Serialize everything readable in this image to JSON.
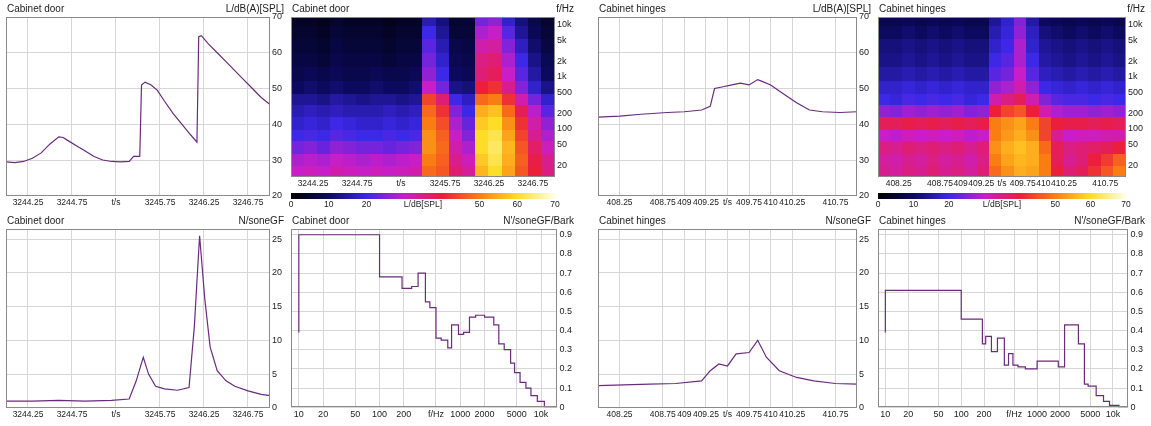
{
  "chart_data": [
    {
      "type": "line",
      "title": "Cabinet door",
      "y_label": "L/dB(A)[SPL]",
      "grid": true,
      "color": "#6a2b7d",
      "xlim": [
        3244.0,
        3247.0
      ],
      "xticks": [
        3244.25,
        3244.75,
        {
          "value": 3245.25,
          "label": "t/s"
        },
        3245.75,
        3246.25,
        3246.75
      ],
      "ylim": [
        20,
        70
      ],
      "yticks": [
        20,
        30,
        40,
        50,
        60,
        70
      ],
      "x": [
        3244.0,
        3244.1,
        3244.2,
        3244.3,
        3244.4,
        3244.5,
        3244.6,
        3244.65,
        3244.7,
        3244.8,
        3244.9,
        3245.0,
        3245.1,
        3245.2,
        3245.3,
        3245.4,
        3245.45,
        3245.52,
        3245.54,
        3245.58,
        3245.65,
        3245.72,
        3245.8,
        3245.9,
        3246.0,
        3246.1,
        3246.17,
        3246.19,
        3246.22,
        3246.3,
        3246.4,
        3246.5,
        3246.6,
        3246.7,
        3246.8,
        3246.9,
        3247.0
      ],
      "values": [
        29.5,
        29.3,
        29.6,
        30.5,
        32,
        34.5,
        36.5,
        36.3,
        35.5,
        34,
        32.5,
        31,
        30,
        29.6,
        29.5,
        29.6,
        31,
        31,
        51,
        51.8,
        51,
        49.5,
        46.5,
        43,
        40,
        37,
        35,
        64.5,
        64.8,
        62.5,
        60,
        57.5,
        55,
        52.5,
        50,
        47.5,
        45.5
      ]
    },
    {
      "type": "heatmap",
      "title": "Cabinet door",
      "y_label": "f/Hz",
      "log": "y",
      "xlim": [
        3244.0,
        3247.0
      ],
      "xticks": [
        3244.25,
        3244.75,
        {
          "value": 3245.25,
          "label": "t/s"
        },
        3245.75,
        3246.25,
        3246.75
      ],
      "ylim": [
        12,
        14000
      ],
      "yticks": [
        20,
        50,
        100,
        200,
        500,
        {
          "value": 1000,
          "label": "1k"
        },
        {
          "value": 2000,
          "label": "2k"
        },
        {
          "value": 5000,
          "label": "5k"
        },
        {
          "value": 10000,
          "label": "10k"
        }
      ],
      "x_edges": [
        3244.0,
        3244.15,
        3244.3,
        3244.45,
        3244.6,
        3244.75,
        3244.9,
        3245.05,
        3245.2,
        3245.35,
        3245.5,
        3245.65,
        3245.8,
        3245.95,
        3246.1,
        3246.25,
        3246.4,
        3246.55,
        3246.7,
        3246.85,
        3247.0
      ],
      "y_edges": [
        12,
        20,
        35,
        60,
        100,
        170,
        300,
        500,
        900,
        1600,
        3000,
        5500,
        10000,
        14000
      ],
      "cells": [
        [
          30,
          31,
          30,
          32,
          31,
          30,
          31,
          30,
          31,
          32,
          48,
          46,
          36,
          33,
          56,
          60,
          54,
          46,
          40,
          35
        ],
        [
          28,
          29,
          28,
          30,
          29,
          28,
          29,
          28,
          29,
          30,
          50,
          47,
          34,
          31,
          58,
          62,
          55,
          47,
          39,
          34
        ],
        [
          24,
          25,
          23,
          26,
          25,
          24,
          24,
          23,
          24,
          25,
          52,
          48,
          32,
          28,
          60,
          63,
          56,
          46,
          37,
          31
        ],
        [
          20,
          21,
          20,
          22,
          21,
          20,
          20,
          21,
          20,
          21,
          52,
          47,
          30,
          25,
          60,
          62,
          54,
          44,
          34,
          28
        ],
        [
          18,
          19,
          18,
          20,
          19,
          18,
          18,
          19,
          18,
          19,
          50,
          45,
          28,
          23,
          58,
          60,
          52,
          42,
          32,
          26
        ],
        [
          16,
          17,
          16,
          17,
          16,
          16,
          16,
          17,
          16,
          17,
          48,
          42,
          25,
          20,
          55,
          57,
          48,
          38,
          29,
          22
        ],
        [
          14,
          14,
          13,
          15,
          14,
          13,
          14,
          14,
          13,
          14,
          44,
          36,
          20,
          17,
          48,
          50,
          42,
          32,
          24,
          18
        ],
        [
          10,
          11,
          10,
          11,
          10,
          10,
          11,
          10,
          10,
          11,
          30,
          24,
          13,
          12,
          40,
          42,
          34,
          25,
          18,
          13
        ],
        [
          8,
          9,
          8,
          9,
          8,
          8,
          9,
          8,
          8,
          9,
          26,
          20,
          10,
          9,
          36,
          38,
          30,
          22,
          15,
          10
        ],
        [
          7,
          7,
          6,
          8,
          7,
          7,
          7,
          6,
          7,
          7,
          24,
          18,
          9,
          8,
          35,
          36,
          28,
          20,
          13,
          9
        ],
        [
          6,
          6,
          5,
          7,
          6,
          6,
          6,
          5,
          6,
          6,
          22,
          16,
          8,
          7,
          32,
          33,
          25,
          17,
          11,
          7
        ],
        [
          5,
          5,
          4,
          6,
          5,
          5,
          5,
          4,
          5,
          5,
          20,
          14,
          6,
          6,
          28,
          30,
          22,
          14,
          9,
          6
        ],
        [
          4,
          4,
          3,
          5,
          4,
          4,
          4,
          3,
          4,
          4,
          16,
          12,
          5,
          5,
          24,
          26,
          18,
          12,
          8,
          5
        ]
      ],
      "colorbar": {
        "range": [
          0,
          70
        ],
        "ticks": [
          0,
          10,
          20,
          {
            "value": 35,
            "label": "L/dB[SPL]"
          },
          50,
          60,
          70
        ]
      }
    },
    {
      "type": "line",
      "title": "Cabinet hinges",
      "y_label": "L/dB(A)[SPL]",
      "grid": true,
      "color": "#6a2b7d",
      "xlim": [
        408.0,
        411.0
      ],
      "xticks": [
        408.25,
        408.75,
        409,
        409.25,
        {
          "value": 409.5,
          "label": "t/s"
        },
        409.75,
        410,
        410.25,
        410.75
      ],
      "ylim": [
        20,
        70
      ],
      "yticks": [
        20,
        30,
        40,
        50,
        60,
        70
      ],
      "x": [
        408.0,
        408.25,
        408.5,
        408.8,
        409.0,
        409.2,
        409.3,
        409.35,
        409.45,
        409.55,
        409.65,
        409.75,
        409.85,
        409.9,
        410.0,
        410.15,
        410.3,
        410.45,
        410.6,
        410.8,
        411.0
      ],
      "values": [
        42,
        42.3,
        42.8,
        43.3,
        43.5,
        44,
        45,
        50,
        50.5,
        51,
        51.5,
        51,
        52.5,
        52,
        51,
        48.5,
        46,
        44,
        43.5,
        43.3,
        43.5
      ]
    },
    {
      "type": "heatmap",
      "title": "Cabinet hinges",
      "y_label": "f/Hz",
      "log": "y",
      "xlim": [
        408.0,
        411.0
      ],
      "xticks": [
        408.25,
        408.75,
        409,
        409.25,
        {
          "value": 409.5,
          "label": "t/s"
        },
        409.75,
        410,
        410.25,
        410.75
      ],
      "ylim": [
        12,
        14000
      ],
      "yticks": [
        20,
        50,
        100,
        200,
        500,
        {
          "value": 1000,
          "label": "1k"
        },
        {
          "value": 2000,
          "label": "2k"
        },
        {
          "value": 5000,
          "label": "5k"
        },
        {
          "value": 10000,
          "label": "10k"
        }
      ],
      "x_edges": [
        408.0,
        408.15,
        408.3,
        408.45,
        408.6,
        408.75,
        408.9,
        409.05,
        409.2,
        409.35,
        409.5,
        409.65,
        409.8,
        409.95,
        410.1,
        410.25,
        410.4,
        410.55,
        410.7,
        410.85,
        411.0
      ],
      "y_edges": [
        12,
        20,
        35,
        60,
        100,
        170,
        300,
        500,
        900,
        1600,
        3000,
        5500,
        10000,
        14000
      ],
      "cells": [
        [
          34,
          33,
          35,
          34,
          36,
          34,
          35,
          33,
          36,
          48,
          52,
          55,
          54,
          50,
          40,
          36,
          38,
          42,
          46,
          50
        ],
        [
          33,
          32,
          34,
          33,
          35,
          33,
          34,
          32,
          35,
          50,
          54,
          56,
          55,
          50,
          38,
          34,
          36,
          40,
          43,
          47
        ],
        [
          35,
          34,
          36,
          35,
          36,
          35,
          36,
          34,
          36,
          52,
          55,
          57,
          55,
          48,
          38,
          35,
          36,
          37,
          38,
          40
        ],
        [
          30,
          29,
          31,
          30,
          31,
          30,
          31,
          29,
          30,
          50,
          53,
          55,
          52,
          44,
          34,
          30,
          31,
          31,
          32,
          32
        ],
        [
          38,
          38,
          39,
          38,
          39,
          38,
          39,
          38,
          39,
          50,
          52,
          54,
          50,
          44,
          40,
          39,
          39,
          38,
          39,
          38
        ],
        [
          26,
          25,
          27,
          26,
          27,
          26,
          27,
          25,
          26,
          40,
          44,
          46,
          40,
          32,
          28,
          27,
          27,
          26,
          27,
          26
        ],
        [
          20,
          19,
          21,
          20,
          21,
          20,
          21,
          19,
          20,
          32,
          35,
          38,
          32,
          25,
          22,
          21,
          21,
          20,
          21,
          20
        ],
        [
          18,
          18,
          19,
          18,
          19,
          18,
          19,
          18,
          18,
          26,
          28,
          32,
          26,
          20,
          19,
          18,
          19,
          18,
          19,
          18
        ],
        [
          15,
          15,
          16,
          15,
          16,
          15,
          16,
          15,
          15,
          22,
          24,
          30,
          22,
          17,
          16,
          15,
          16,
          15,
          16,
          15
        ],
        [
          13,
          13,
          14,
          13,
          14,
          13,
          14,
          13,
          13,
          20,
          22,
          28,
          20,
          15,
          14,
          13,
          14,
          13,
          14,
          13
        ],
        [
          12,
          12,
          13,
          12,
          13,
          12,
          13,
          12,
          12,
          18,
          20,
          28,
          18,
          14,
          13,
          12,
          13,
          12,
          13,
          12
        ],
        [
          10,
          10,
          11,
          10,
          11,
          10,
          11,
          10,
          10,
          16,
          19,
          26,
          17,
          12,
          11,
          10,
          11,
          10,
          11,
          10
        ],
        [
          8,
          8,
          9,
          8,
          9,
          8,
          9,
          8,
          8,
          14,
          18,
          25,
          15,
          10,
          9,
          8,
          9,
          8,
          9,
          8
        ]
      ],
      "colorbar": {
        "range": [
          0,
          70
        ],
        "ticks": [
          0,
          10,
          20,
          {
            "value": 35,
            "label": "L/dB[SPL]"
          },
          50,
          60,
          70
        ]
      }
    },
    {
      "type": "line",
      "title": "Cabinet door",
      "y_label": "N/soneGF",
      "grid": true,
      "color": "#6a2b7d",
      "xlim": [
        3244.0,
        3247.0
      ],
      "xticks": [
        3244.25,
        3244.75,
        {
          "value": 3245.25,
          "label": "t/s"
        },
        3245.75,
        3246.25,
        3246.75
      ],
      "ylim": [
        0,
        26.5
      ],
      "yticks": [
        0,
        5,
        10,
        15,
        20,
        25
      ],
      "x": [
        3244.0,
        3244.3,
        3244.6,
        3244.9,
        3245.2,
        3245.4,
        3245.48,
        3245.56,
        3245.62,
        3245.7,
        3245.8,
        3245.95,
        3246.08,
        3246.14,
        3246.2,
        3246.26,
        3246.32,
        3246.4,
        3246.5,
        3246.6,
        3246.75,
        3246.9,
        3247.0
      ],
      "values": [
        1.0,
        1.0,
        1.1,
        1.0,
        1.1,
        1.3,
        4,
        7.5,
        5,
        3.2,
        2.8,
        2.6,
        3,
        12,
        25.5,
        16,
        9,
        5.5,
        4,
        3.2,
        2.5,
        2.0,
        1.8
      ]
    },
    {
      "type": "line",
      "title": "Cabinet door",
      "y_label": "N'/soneGF/Bark",
      "grid": true,
      "color": "#6a2b7d",
      "log": "x",
      "line_style": "steps",
      "xlim": [
        8,
        16000
      ],
      "xticks": [
        10,
        20,
        50,
        100,
        200,
        {
          "value": 500,
          "label": "f/Hz"
        },
        1000,
        2000,
        5000,
        {
          "value": 10000,
          "label": "10k"
        }
      ],
      "ylim": [
        0,
        0.93
      ],
      "yticks": [
        0,
        0.1,
        0.2,
        0.3,
        0.4,
        0.5,
        0.6,
        0.7,
        0.8,
        0.9
      ],
      "x": [
        10,
        100,
        190,
        250,
        300,
        370,
        420,
        500,
        580,
        700,
        780,
        950,
        1100,
        1300,
        1550,
        2000,
        2600,
        3000,
        3500,
        4200,
        4700,
        5500,
        6500,
        7500,
        9000,
        11000,
        13000,
        16000
      ],
      "values": [
        0.39,
        0.9,
        0.68,
        0.62,
        0.63,
        0.7,
        0.55,
        0.52,
        0.36,
        0.35,
        0.31,
        0.43,
        0.38,
        0.39,
        0.47,
        0.48,
        0.47,
        0.43,
        0.33,
        0.3,
        0.23,
        0.18,
        0.13,
        0.1,
        0.06,
        0.03,
        0,
        0
      ]
    },
    {
      "type": "line",
      "title": "Cabinet hinges",
      "y_label": "N/soneGF",
      "grid": true,
      "color": "#6a2b7d",
      "xlim": [
        408.0,
        411.0
      ],
      "xticks": [
        408.25,
        408.75,
        409,
        409.25,
        {
          "value": 409.5,
          "label": "t/s"
        },
        409.75,
        410,
        410.25,
        410.75
      ],
      "ylim": [
        0,
        26.5
      ],
      "yticks": [
        0,
        5,
        10,
        15,
        20,
        25
      ],
      "x": [
        408.0,
        408.3,
        408.6,
        408.9,
        409.2,
        409.3,
        409.4,
        409.5,
        409.6,
        409.75,
        409.85,
        409.95,
        410.1,
        410.3,
        410.5,
        410.75,
        411.0
      ],
      "values": [
        3.3,
        3.4,
        3.5,
        3.6,
        4,
        5.5,
        6.5,
        6.2,
        8,
        8.2,
        10,
        7.5,
        5.5,
        4.5,
        4,
        3.6,
        3.5
      ]
    },
    {
      "type": "line",
      "title": "Cabinet hinges",
      "y_label": "N'/soneGF/Bark",
      "grid": true,
      "color": "#6a2b7d",
      "log": "x",
      "line_style": "steps",
      "xlim": [
        8,
        16000
      ],
      "xticks": [
        10,
        20,
        50,
        100,
        200,
        {
          "value": 500,
          "label": "f/Hz"
        },
        1000,
        2000,
        5000,
        {
          "value": 10000,
          "label": "10k"
        }
      ],
      "ylim": [
        0,
        0.93
      ],
      "yticks": [
        0,
        0.1,
        0.2,
        0.3,
        0.4,
        0.5,
        0.6,
        0.7,
        0.8,
        0.9
      ],
      "x": [
        10,
        100,
        190,
        210,
        250,
        300,
        370,
        420,
        480,
        560,
        700,
        850,
        1000,
        1200,
        1900,
        2300,
        2800,
        3500,
        4200,
        4700,
        6000,
        7500,
        9000,
        12000,
        16000
      ],
      "values": [
        0.39,
        0.61,
        0.46,
        0.33,
        0.37,
        0.29,
        0.36,
        0.22,
        0.28,
        0.22,
        0.21,
        0.2,
        0.2,
        0.24,
        0.24,
        0.21,
        0.43,
        0.43,
        0.33,
        0.12,
        0.11,
        0.06,
        0.03,
        0.01,
        0
      ]
    }
  ]
}
